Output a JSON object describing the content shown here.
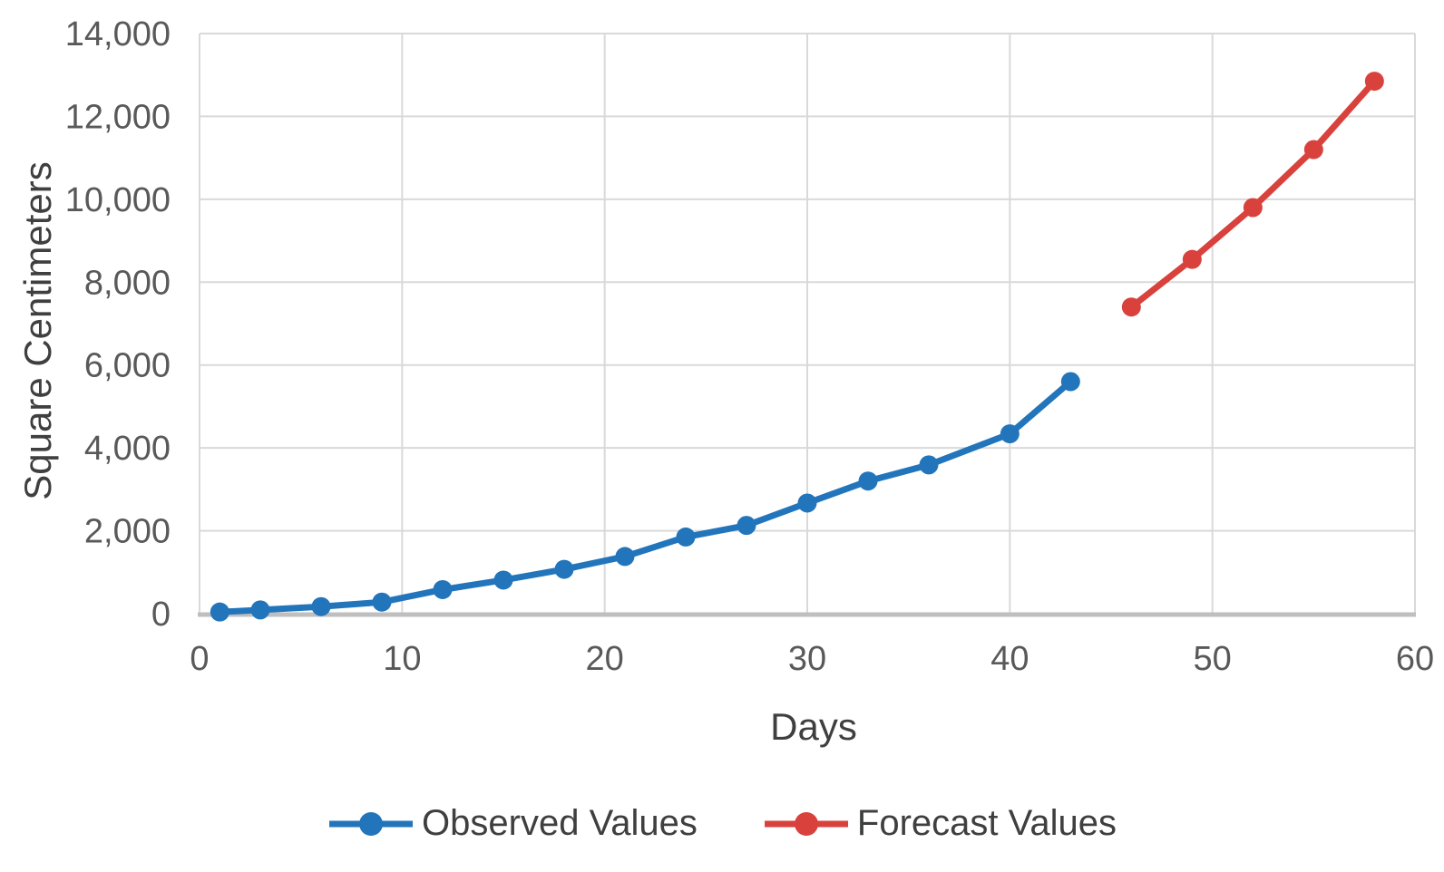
{
  "chart_data": {
    "type": "line",
    "title": "",
    "xlabel": "Days",
    "ylabel": "Square Centimeters",
    "xlim": [
      0,
      60
    ],
    "ylim": [
      0,
      14000
    ],
    "x_ticks": [
      0,
      10,
      20,
      30,
      40,
      50,
      60
    ],
    "y_ticks": [
      0,
      2000,
      4000,
      6000,
      8000,
      10000,
      12000,
      14000
    ],
    "y_tick_labels": [
      "0",
      "2,000",
      "4,000",
      "6,000",
      "8,000",
      "10,000",
      "12,000",
      "14,000"
    ],
    "grid": true,
    "legend_position": "bottom",
    "series": [
      {
        "name": "Observed Values",
        "color": "#2375BB",
        "x": [
          1,
          3,
          6,
          9,
          12,
          15,
          18,
          21,
          24,
          27,
          30,
          33,
          36,
          40,
          43
        ],
        "y": [
          40,
          90,
          170,
          280,
          580,
          810,
          1070,
          1380,
          1850,
          2130,
          2670,
          3200,
          3590,
          4340,
          5600
        ]
      },
      {
        "name": "Forecast Values",
        "color": "#D9413D",
        "x": [
          46,
          49,
          52,
          55,
          58
        ],
        "y": [
          7400,
          8550,
          9800,
          11200,
          12850
        ]
      }
    ],
    "style": {
      "background": "#FFFFFF",
      "grid_color": "#D9D9D9",
      "axis_line_color": "#BFBFBF",
      "tick_label_color": "#595959",
      "axis_title_color": "#3F3F3F"
    }
  }
}
